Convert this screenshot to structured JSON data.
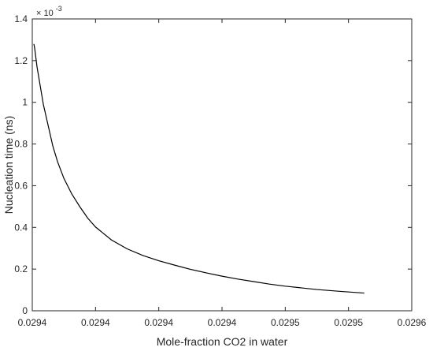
{
  "chart_data": {
    "type": "line",
    "xlabel": "Mole-fraction CO2 in water",
    "ylabel": "Nucleation time (ns)",
    "y_exponent": {
      "base": "× 10",
      "power": "-3"
    },
    "xlim": [
      0.0294,
      0.0296
    ],
    "ylim": [
      0,
      0.0014
    ],
    "grid": false,
    "x_ticks": [
      {
        "value": 0.0294,
        "label": "0.0294"
      },
      {
        "value": 0.02944,
        "label": "0.0294"
      },
      {
        "value": 0.02948,
        "label": "0.0294"
      },
      {
        "value": 0.02952,
        "label": "0.0294"
      },
      {
        "value": 0.02956,
        "label": "0.0295"
      },
      {
        "value": 0.0296,
        "label": "0.0295"
      },
      {
        "value": 0.02964,
        "label": "0.0296"
      }
    ],
    "y_ticks": [
      {
        "value": 0,
        "label": "0"
      },
      {
        "value": 0.0002,
        "label": "0.2"
      },
      {
        "value": 0.0004,
        "label": "0.4"
      },
      {
        "value": 0.0006,
        "label": "0.6"
      },
      {
        "value": 0.0008,
        "label": "0.8"
      },
      {
        "value": 0.001,
        "label": "1"
      },
      {
        "value": 0.0012,
        "label": "1.2"
      },
      {
        "value": 0.0014,
        "label": "1.4"
      }
    ],
    "series": [
      {
        "color": "#000000",
        "x": [
          0.029401,
          0.0294015,
          0.029402,
          0.029403,
          0.029405,
          0.029407,
          0.02941,
          0.029413,
          0.029416,
          0.02942,
          0.029425,
          0.02943,
          0.029435,
          0.02944,
          0.02945,
          0.02946,
          0.02947,
          0.02948,
          0.02949,
          0.0295,
          0.02951,
          0.02952,
          0.02953,
          0.02954,
          0.02955,
          0.02956,
          0.02957,
          0.02958,
          0.029595,
          0.02961
        ],
        "y": [
          0.00128,
          0.00126,
          0.00123,
          0.00117,
          0.00108,
          0.00099,
          0.00089,
          0.00079,
          0.000715,
          0.000635,
          0.00056,
          0.0005,
          0.000445,
          0.000402,
          0.00034,
          0.000297,
          0.000265,
          0.00024,
          0.000219,
          0.000199,
          0.000182,
          0.000166,
          0.000152,
          0.00014,
          0.000128,
          0.000118,
          0.00011,
          0.000102,
          9.3e-05,
          8.5e-05
        ]
      }
    ]
  }
}
